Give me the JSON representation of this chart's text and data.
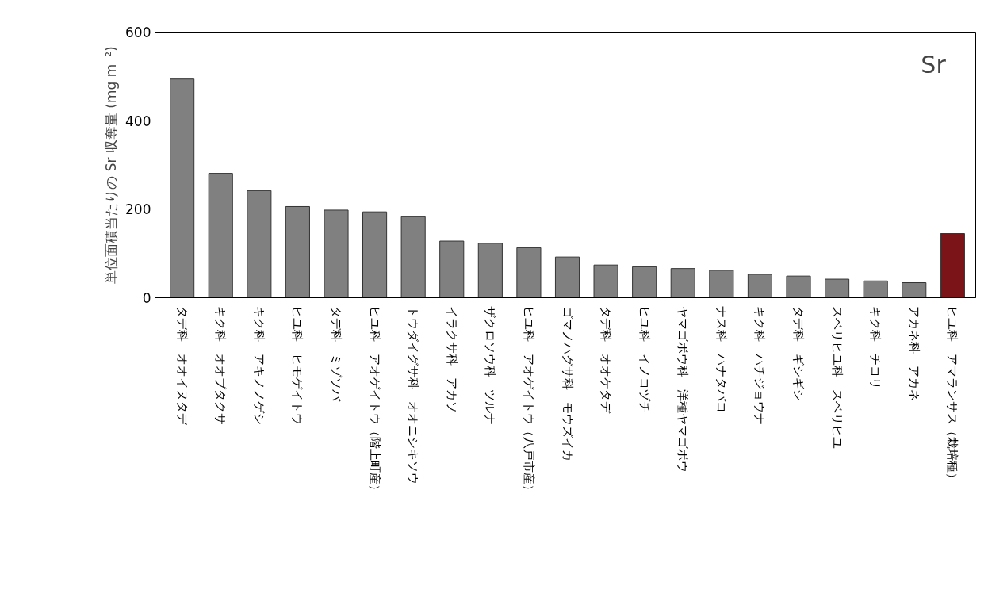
{
  "chart_data": {
    "type": "bar",
    "ylabel": "単位面積当たりの Sr 収奪量 (mg m⁻²)",
    "categories": [
      "タデ科　オオイヌタデ",
      "キク科　オオブタクサ",
      "キク科　アキノノゲシ",
      "ヒユ科　ヒモゲイトウ",
      "タデ科　ミゾソバ",
      "ヒユ科　アオゲイトウ（階上町産）",
      "トウダイグサ科　オオニシキソウ",
      "イラクサ科　アカソ",
      "ザクロソウ科　ツルナ",
      "ヒユ科　アオゲイトウ（八戸市産）",
      "ゴマノハグサ科　モウズイカ",
      "タデ科　オオケタデ",
      "ヒユ科　イノコヅチ",
      "ヤマゴボウ科　洋種ヤマゴボウ",
      "ナス科　ハナタバコ",
      "キク科　ハチジョウナ",
      "タデ科　ギシギシ",
      "スベリヒユ科　スベリヒユ",
      "キク科　チコリ",
      "アカネ科　アカネ",
      "ヒユ科　アマランサス（栽培種）"
    ],
    "values": [
      494,
      281,
      242,
      206,
      198,
      194,
      183,
      128,
      123,
      113,
      92,
      74,
      70,
      66,
      62,
      53,
      49,
      42,
      38,
      34,
      145
    ],
    "colors": [
      "#808080",
      "#808080",
      "#808080",
      "#808080",
      "#808080",
      "#808080",
      "#808080",
      "#808080",
      "#808080",
      "#808080",
      "#808080",
      "#808080",
      "#808080",
      "#808080",
      "#808080",
      "#808080",
      "#808080",
      "#808080",
      "#808080",
      "#808080",
      "#7b1418"
    ],
    "ylim": [
      0,
      600
    ],
    "yticks": [
      0,
      200,
      400,
      600
    ],
    "grid": "y",
    "annotations": [
      "Sr"
    ]
  }
}
